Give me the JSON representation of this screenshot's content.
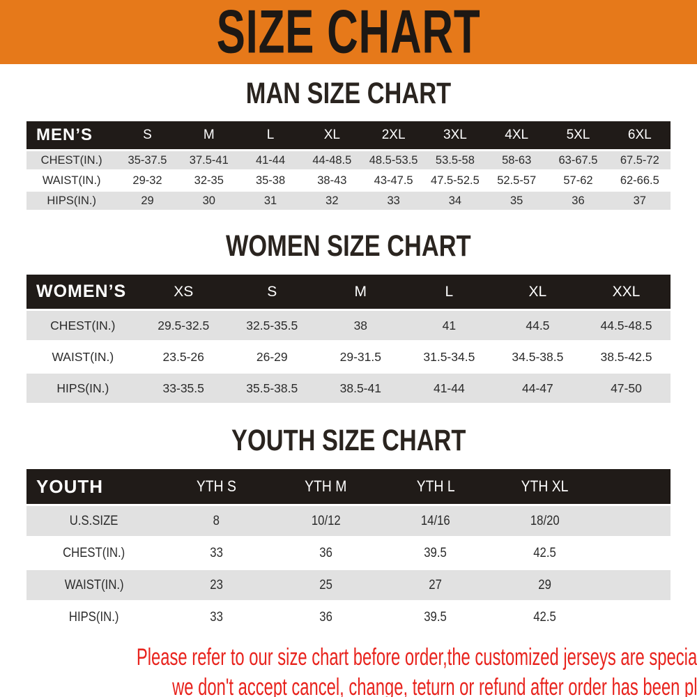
{
  "banner": {
    "title": "SIZE CHART",
    "background_color": "#E6791A"
  },
  "sections": [
    {
      "heading": "MAN SIZE CHART",
      "table": {
        "header": [
          "MEN’S",
          "S",
          "M",
          "L",
          "XL",
          "2XL",
          "3XL",
          "4XL",
          "5XL",
          "6XL"
        ],
        "rows": [
          {
            "label": "CHEST(IN.)",
            "values": [
              "35-37.5",
              "37.5-41",
              "41-44",
              "44-48.5",
              "48.5-53.5",
              "53.5-58",
              "58-63",
              "63-67.5",
              "67.5-72"
            ]
          },
          {
            "label": "WAIST(IN.)",
            "values": [
              "29-32",
              "32-35",
              "35-38",
              "38-43",
              "43-47.5",
              "47.5-52.5",
              "52.5-57",
              "57-62",
              "62-66.5"
            ]
          },
          {
            "label": "HIPS(IN.)",
            "values": [
              "29",
              "30",
              "31",
              "32",
              "33",
              "34",
              "35",
              "36",
              "37"
            ]
          }
        ]
      }
    },
    {
      "heading": "WOMEN SIZE CHART",
      "table": {
        "header": [
          "WOMEN’S",
          "XS",
          "S",
          "M",
          "L",
          "XL",
          "XXL"
        ],
        "rows": [
          {
            "label": "CHEST(IN.)",
            "values": [
              "29.5-32.5",
              "32.5-35.5",
              "38",
              "41",
              "44.5",
              "44.5-48.5"
            ]
          },
          {
            "label": "WAIST(IN.)",
            "values": [
              "23.5-26",
              "26-29",
              "29-31.5",
              "31.5-34.5",
              "34.5-38.5",
              "38.5-42.5"
            ]
          },
          {
            "label": "HIPS(IN.)",
            "values": [
              "33-35.5",
              "35.5-38.5",
              "38.5-41",
              "41-44",
              "44-47",
              "47-50"
            ]
          }
        ]
      }
    },
    {
      "heading": "YOUTH SIZE CHART",
      "table": {
        "header": [
          "YOUTH",
          "YTH S",
          "YTH M",
          "YTH L",
          "YTH XL"
        ],
        "rows": [
          {
            "label": "U.S.SIZE",
            "values": [
              "8",
              "10/12",
              "14/16",
              "18/20"
            ]
          },
          {
            "label": "CHEST(IN.)",
            "values": [
              "33",
              "36",
              "39.5",
              "42.5"
            ]
          },
          {
            "label": "WAIST(IN.)",
            "values": [
              "23",
              "25",
              "27",
              "29"
            ]
          },
          {
            "label": "HIPS(IN.)",
            "values": [
              "33",
              "36",
              "39.5",
              "42.5"
            ]
          }
        ]
      }
    }
  ],
  "footer": {
    "line1": "Please refer to our size chart before order,the customized jerseys are special products,",
    "line2": "we don't accept cancel, change, teturn or refund after order has been placed!",
    "text_color": "#E8231D"
  },
  "colors": {
    "banner_orange": "#E6791A",
    "table_header_black": "#201B18",
    "stripe_gray": "#E1E1E1",
    "footer_red": "#E8231D"
  }
}
